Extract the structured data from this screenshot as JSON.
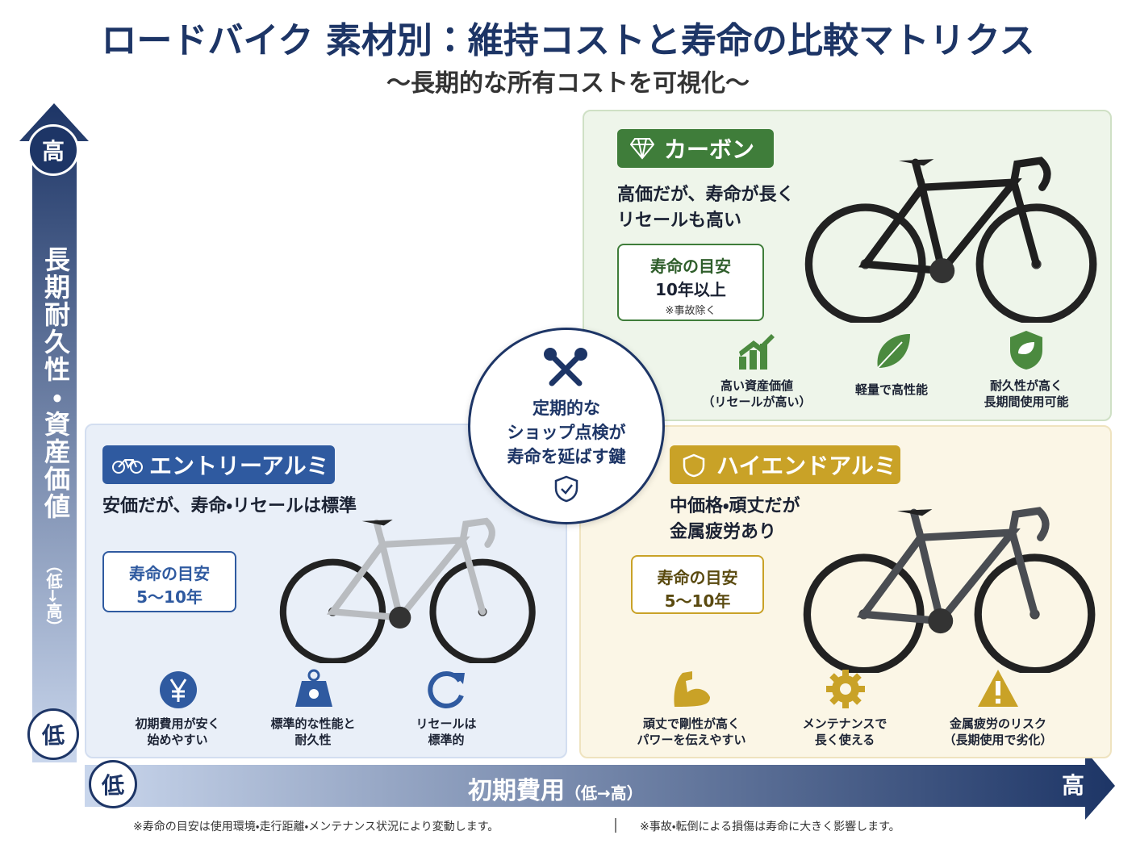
{
  "header": {
    "title": "ロードバイク 素材別：維持コストと寿命の比較マトリクス",
    "subtitle": "〜長期的な所有コストを可視化〜"
  },
  "y_axis": {
    "high": "高",
    "label": "長期耐久性・資産価値",
    "range": "（低→高）",
    "low": "低"
  },
  "x_axis": {
    "low": "低",
    "label": "初期費用",
    "range": "（低→高）",
    "high": "高"
  },
  "center": {
    "lines": [
      "定期的な",
      "ショップ点検が",
      "寿命を延ばす鍵"
    ]
  },
  "quadrants": {
    "carbon": {
      "name": "カーボン",
      "desc": [
        "高価だが、寿命が長く",
        "リセールも高い"
      ],
      "lifespan": {
        "label": "寿命の目安",
        "value": "10年以上",
        "note": "※事故除く"
      },
      "features": [
        [
          "高い資産価値",
          "（リセールが高い）"
        ],
        [
          "軽量で高性能"
        ],
        [
          "耐久性が高く",
          "長期間使用可能"
        ]
      ]
    },
    "entry": {
      "name": "エントリーアルミ",
      "desc": [
        "安価だが、寿命・リセールは標準"
      ],
      "lifespan": {
        "label": "寿命の目安",
        "value": "5〜10年"
      },
      "features": [
        [
          "初期費用が安く",
          "始めやすい"
        ],
        [
          "標準的な性能と",
          "耐久性"
        ],
        [
          "リセールは",
          "標準的"
        ]
      ]
    },
    "highend": {
      "name": "ハイエンドアルミ",
      "desc": [
        "中価格・頑丈だが",
        "金属疲労あり"
      ],
      "lifespan": {
        "label": "寿命の目安",
        "value": "5〜10年"
      },
      "features": [
        [
          "頑丈で剛性が高く",
          "パワーを伝えやすい"
        ],
        [
          "メンテナンスで",
          "長く使える"
        ],
        [
          "金属疲労のリスク",
          "（長期使用で劣化）"
        ]
      ]
    }
  },
  "footnotes": [
    "※寿命の目安は使用環境・走行距離・メンテナンス状況により変動します。",
    "※事故・転倒による損傷は寿命に大きく影響します。"
  ]
}
